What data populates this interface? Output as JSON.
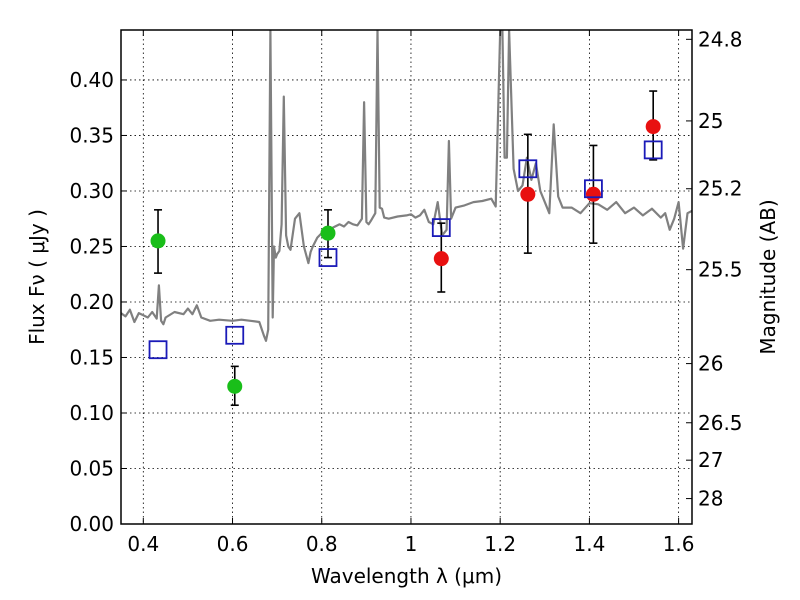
{
  "chart_data": {
    "type": "scatter",
    "title": "",
    "xlabel": "Wavelength  λ (μm)",
    "ylabel": "Flux  Fν ( μJy )",
    "y2label": "Magnitude (AB)",
    "xlim": [
      0.35,
      1.63
    ],
    "ylim": [
      0.0,
      0.445
    ],
    "grid": true,
    "xticks": [
      0.4,
      0.6,
      0.8,
      1.0,
      1.2,
      1.4,
      1.6
    ],
    "xtick_labels": [
      "0.4",
      "0.6",
      "0.8",
      "1",
      "1.2",
      "1.4",
      "1.6"
    ],
    "yticks": [
      0.0,
      0.05,
      0.1,
      0.15,
      0.2,
      0.25,
      0.3,
      0.35,
      0.4
    ],
    "ytick_labels": [
      "0.00",
      "0.05",
      "0.10",
      "0.15",
      "0.20",
      "0.25",
      "0.30",
      "0.35",
      "0.40"
    ],
    "y2ticks": [
      {
        "label": "24.8",
        "flux": 0.4366
      },
      {
        "label": "25",
        "flux": 0.3631
      },
      {
        "label": "25.2",
        "flux": 0.302
      },
      {
        "label": "25.5",
        "flux": 0.2291
      },
      {
        "label": "26",
        "flux": 0.1445
      },
      {
        "label": "26.5",
        "flux": 0.0912
      },
      {
        "label": "27",
        "flux": 0.0575
      },
      {
        "label": "28",
        "flux": 0.0229
      }
    ],
    "series": [
      {
        "kind": "line",
        "color": "#808080",
        "x": [
          0.35,
          0.36,
          0.37,
          0.38,
          0.39,
          0.4,
          0.41,
          0.42,
          0.43,
          0.435,
          0.44,
          0.445,
          0.45,
          0.47,
          0.49,
          0.5,
          0.51,
          0.52,
          0.53,
          0.55,
          0.57,
          0.6,
          0.62,
          0.64,
          0.66,
          0.67,
          0.675,
          0.68,
          0.685,
          0.69,
          0.693,
          0.697,
          0.7,
          0.705,
          0.71,
          0.715,
          0.72,
          0.725,
          0.73,
          0.74,
          0.75,
          0.76,
          0.77,
          0.775,
          0.78,
          0.79,
          0.8,
          0.81,
          0.82,
          0.83,
          0.84,
          0.85,
          0.86,
          0.87,
          0.88,
          0.89,
          0.895,
          0.9,
          0.905,
          0.91,
          0.92,
          0.925,
          0.93,
          0.935,
          0.94,
          0.95,
          0.97,
          0.99,
          1.0,
          1.01,
          1.02,
          1.03,
          1.04,
          1.05,
          1.06,
          1.07,
          1.08,
          1.085,
          1.09,
          1.1,
          1.12,
          1.14,
          1.16,
          1.18,
          1.19,
          1.2,
          1.205,
          1.21,
          1.215,
          1.22,
          1.23,
          1.24,
          1.25,
          1.26,
          1.27,
          1.28,
          1.29,
          1.3,
          1.31,
          1.32,
          1.33,
          1.34,
          1.36,
          1.38,
          1.4,
          1.42,
          1.44,
          1.46,
          1.48,
          1.5,
          1.52,
          1.54,
          1.56,
          1.57,
          1.58,
          1.59,
          1.6,
          1.61,
          1.62,
          1.63
        ],
        "y": [
          0.19,
          0.187,
          0.193,
          0.182,
          0.19,
          0.188,
          0.186,
          0.191,
          0.185,
          0.215,
          0.183,
          0.18,
          0.186,
          0.191,
          0.189,
          0.194,
          0.189,
          0.197,
          0.186,
          0.183,
          0.184,
          0.183,
          0.184,
          0.183,
          0.182,
          0.17,
          0.165,
          0.175,
          0.445,
          0.186,
          0.25,
          0.24,
          0.243,
          0.246,
          0.27,
          0.385,
          0.26,
          0.25,
          0.247,
          0.275,
          0.28,
          0.25,
          0.235,
          0.245,
          0.25,
          0.258,
          0.262,
          0.265,
          0.266,
          0.268,
          0.27,
          0.268,
          0.272,
          0.27,
          0.269,
          0.275,
          0.38,
          0.272,
          0.27,
          0.273,
          0.28,
          0.445,
          0.285,
          0.284,
          0.276,
          0.275,
          0.277,
          0.278,
          0.279,
          0.276,
          0.278,
          0.283,
          0.272,
          0.27,
          0.29,
          0.26,
          0.265,
          0.345,
          0.275,
          0.285,
          0.287,
          0.29,
          0.291,
          0.293,
          0.286,
          0.445,
          0.445,
          0.33,
          0.33,
          0.445,
          0.32,
          0.3,
          0.305,
          0.33,
          0.31,
          0.325,
          0.3,
          0.29,
          0.28,
          0.36,
          0.295,
          0.285,
          0.285,
          0.28,
          0.289,
          0.288,
          0.283,
          0.29,
          0.28,
          0.285,
          0.278,
          0.284,
          0.276,
          0.28,
          0.265,
          0.275,
          0.29,
          0.248,
          0.28,
          0.282
        ]
      },
      {
        "kind": "points",
        "marker": "circle",
        "color": "#19be19",
        "points": [
          {
            "x": 0.433,
            "y": 0.255,
            "yerr": [
              0.226,
              0.283
            ]
          },
          {
            "x": 0.605,
            "y": 0.124,
            "yerr": [
              0.107,
              0.142
            ]
          },
          {
            "x": 0.814,
            "y": 0.262,
            "yerr": [
              0.24,
              0.283
            ]
          }
        ]
      },
      {
        "kind": "points",
        "marker": "circle",
        "color": "#e81010",
        "points": [
          {
            "x": 1.068,
            "y": 0.239,
            "yerr": [
              0.209,
              0.271
            ]
          },
          {
            "x": 1.262,
            "y": 0.297,
            "yerr": [
              0.244,
              0.351
            ]
          },
          {
            "x": 1.409,
            "y": 0.297,
            "yerr": [
              0.253,
              0.341
            ]
          },
          {
            "x": 1.543,
            "y": 0.358,
            "yerr": [
              0.328,
              0.39
            ]
          }
        ]
      },
      {
        "kind": "points",
        "marker": "square-open",
        "color": "#1a1ab8",
        "points": [
          {
            "x": 0.433,
            "y": 0.157
          },
          {
            "x": 0.605,
            "y": 0.17
          },
          {
            "x": 0.814,
            "y": 0.24
          },
          {
            "x": 1.068,
            "y": 0.267
          },
          {
            "x": 1.262,
            "y": 0.32
          },
          {
            "x": 1.409,
            "y": 0.302
          },
          {
            "x": 1.543,
            "y": 0.337
          }
        ]
      }
    ]
  }
}
